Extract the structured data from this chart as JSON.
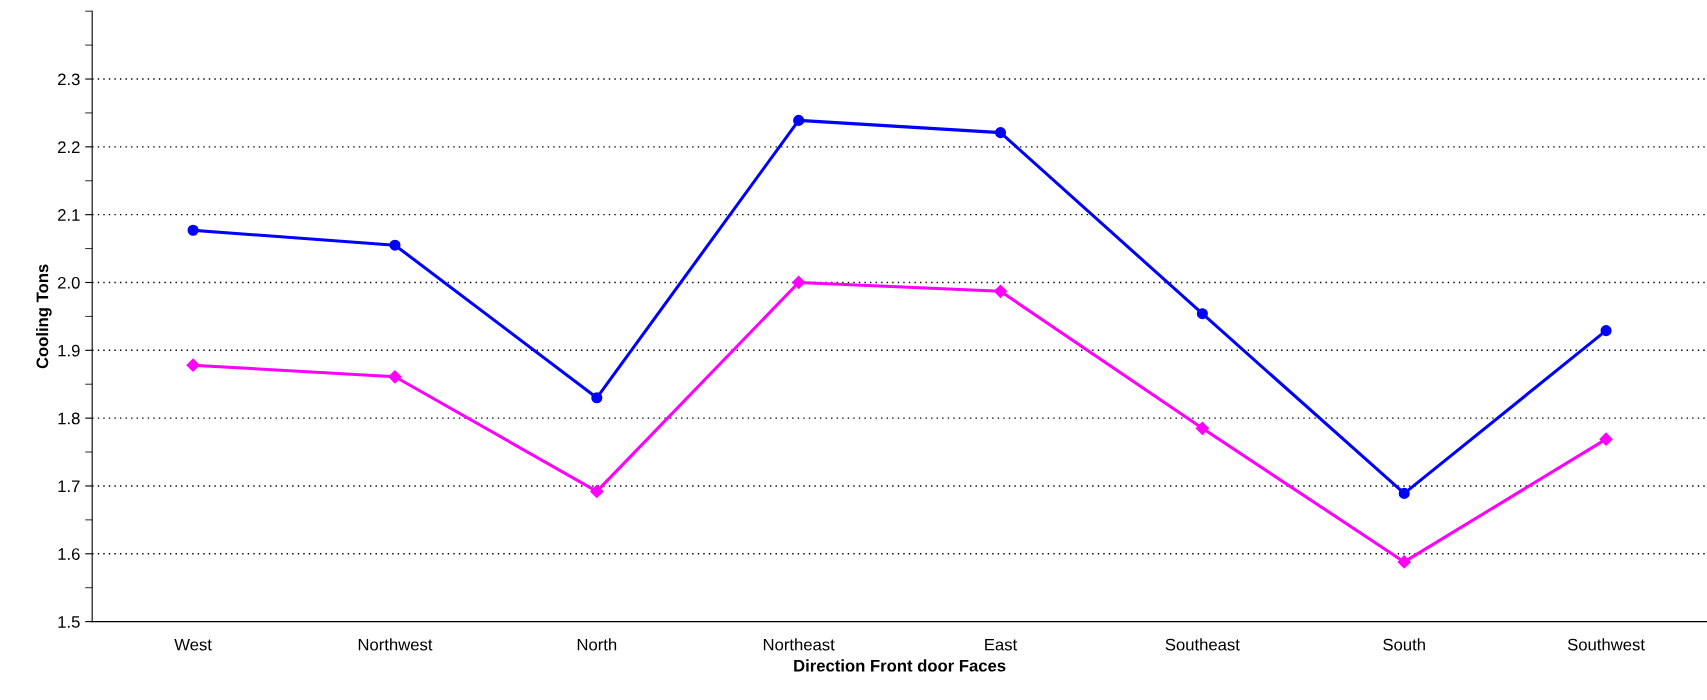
{
  "chart_data": {
    "type": "line",
    "xlabel": "Direction Front door Faces",
    "ylabel": "Cooling Tons",
    "categories": [
      "West",
      "Northwest",
      "North",
      "Northeast",
      "East",
      "Southeast",
      "South",
      "Southwest"
    ],
    "series": [
      {
        "color": "#0000ff",
        "marker": "circle",
        "values": [
          2.077,
          2.055,
          1.83,
          2.239,
          2.221,
          1.954,
          1.689,
          1.929
        ]
      },
      {
        "color": "#ff00ff",
        "marker": "diamond",
        "values": [
          1.878,
          1.861,
          1.692,
          2.0,
          1.987,
          1.785,
          1.588,
          1.769
        ]
      }
    ],
    "ylim": [
      1.5,
      2.4
    ],
    "yticks": [
      1.5,
      {
        "value": 1.55,
        "label": null
      },
      1.6,
      {
        "value": 1.65,
        "label": null
      },
      1.7,
      {
        "value": 1.75,
        "label": null
      },
      1.8,
      {
        "value": 1.85,
        "label": null
      },
      1.9,
      {
        "value": 1.95,
        "label": null
      },
      {
        "value": 2.0,
        "label": "2.0"
      },
      {
        "value": 2.05,
        "label": null
      },
      2.1,
      {
        "value": 2.15,
        "label": null
      },
      2.2,
      {
        "value": 2.25,
        "label": null
      },
      2.3,
      {
        "value": 2.35,
        "label": null
      },
      {
        "value": 2.4,
        "label": null
      }
    ],
    "grid": "y",
    "line_style": "solid"
  }
}
